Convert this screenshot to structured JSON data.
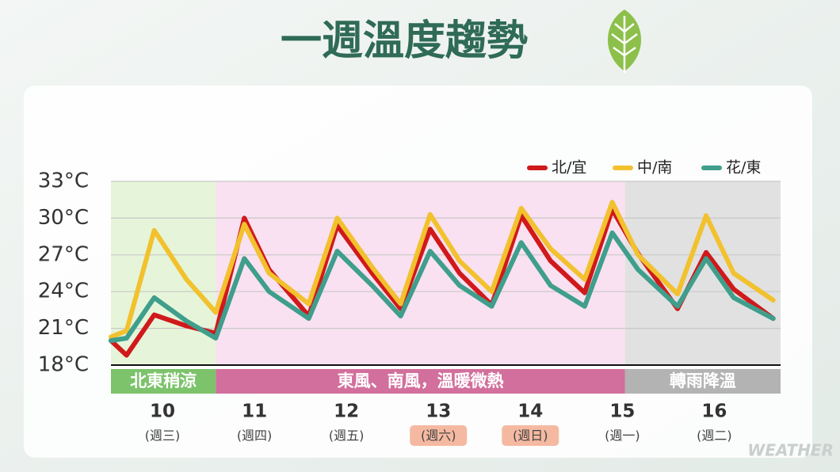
{
  "chart_data": {
    "type": "line",
    "title": "一週溫度趨勢",
    "watermark": "WEATHER",
    "legend": "top-right",
    "grid": true,
    "xlim": [
      9.44,
      16.72
    ],
    "xticks": [
      10,
      11,
      12,
      13,
      14,
      15,
      16
    ],
    "xtick_notes": [
      {
        "label": "(週三)",
        "highlight": false
      },
      {
        "label": "(週四)",
        "highlight": false
      },
      {
        "label": "(週五)",
        "highlight": false
      },
      {
        "label": "(週六)",
        "highlight": true
      },
      {
        "label": "(週日)",
        "highlight": true
      },
      {
        "label": "(週一)",
        "highlight": false
      },
      {
        "label": "(週二)",
        "highlight": false
      }
    ],
    "ylim": [
      18,
      33
    ],
    "yticks": [
      {
        "value": 18,
        "label": "18°C"
      },
      {
        "value": 21,
        "label": "21°C"
      },
      {
        "value": 24,
        "label": "24°C"
      },
      {
        "value": 27,
        "label": "27°C"
      },
      {
        "value": 30,
        "label": "30°C"
      },
      {
        "value": 33,
        "label": "33°C"
      }
    ],
    "regions": [
      {
        "label": "北東稍涼",
        "from": 9.44,
        "to": 10.58,
        "color": "#7cc36b",
        "shade": "#e2f3d2"
      },
      {
        "label": "東風、南風，溫暖微熱",
        "from": 10.58,
        "to": 15.03,
        "color": "#d26f9c",
        "shade": "#f8dcef"
      },
      {
        "label": "轉雨降溫",
        "from": 15.03,
        "to": 16.72,
        "color": "#b3b3b3",
        "shade": "#dcdcdc"
      }
    ],
    "x": [
      9.44,
      9.61,
      9.91,
      10.26,
      10.58,
      10.89,
      11.16,
      11.59,
      11.9,
      12.28,
      12.59,
      12.91,
      13.23,
      13.58,
      13.9,
      14.22,
      14.59,
      14.89,
      15.17,
      15.6,
      15.91,
      16.21,
      16.64
    ],
    "series": [
      {
        "name": "北/宜",
        "color": "#d0191b",
        "values": [
          20.0,
          18.8,
          22.1,
          21.2,
          20.6,
          30.0,
          25.8,
          22.0,
          29.4,
          25.5,
          22.6,
          29.1,
          25.5,
          22.9,
          30.2,
          26.5,
          23.9,
          30.7,
          27.1,
          22.6,
          27.2,
          24.2,
          21.8
        ]
      },
      {
        "name": "中/南",
        "color": "#f2c12e",
        "values": [
          20.3,
          20.8,
          29.0,
          25.0,
          22.3,
          29.5,
          25.5,
          23.0,
          30.0,
          26.0,
          23.0,
          30.3,
          26.5,
          24.0,
          30.8,
          27.5,
          25.0,
          31.3,
          27.0,
          23.8,
          30.2,
          25.5,
          23.3
        ]
      },
      {
        "name": "花/東",
        "color": "#3f9e8c",
        "values": [
          20.0,
          20.2,
          23.5,
          21.6,
          20.2,
          26.7,
          24.0,
          21.8,
          27.3,
          24.5,
          22.0,
          27.3,
          24.5,
          22.8,
          28.0,
          24.5,
          22.8,
          28.8,
          25.8,
          22.8,
          26.7,
          23.5,
          21.8
        ]
      }
    ]
  }
}
